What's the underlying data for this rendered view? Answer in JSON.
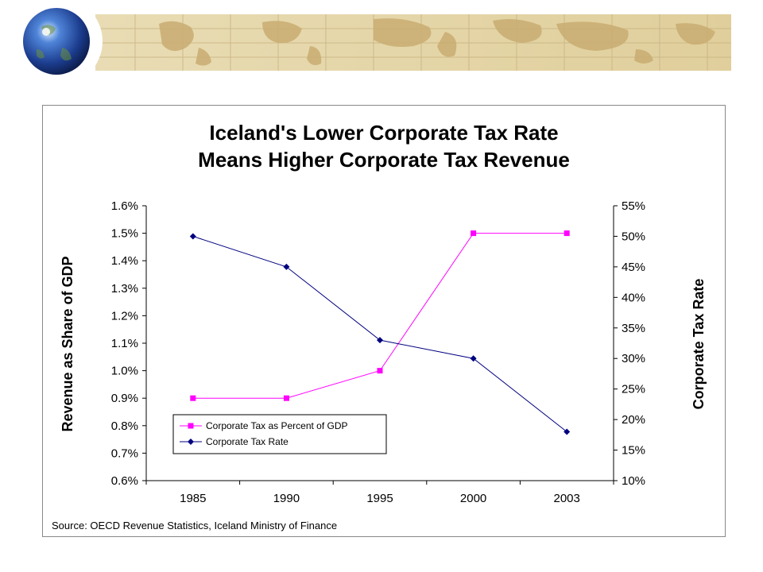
{
  "chart_data": {
    "type": "line",
    "title_lines": [
      "Iceland's Lower Corporate Tax Rate",
      "Means Higher Corporate Tax Revenue"
    ],
    "categories": [
      "1985",
      "1990",
      "1995",
      "2000",
      "2003"
    ],
    "y_left": {
      "label": "Revenue as Share of GDP",
      "range": [
        0.6,
        1.6
      ],
      "ticks": [
        "0.6%",
        "0.7%",
        "0.8%",
        "0.9%",
        "1.0%",
        "1.1%",
        "1.2%",
        "1.3%",
        "1.4%",
        "1.5%",
        "1.6%"
      ]
    },
    "y_right": {
      "label": "Corporate Tax Rate",
      "range": [
        10,
        55
      ],
      "ticks": [
        "10%",
        "15%",
        "20%",
        "25%",
        "30%",
        "35%",
        "40%",
        "45%",
        "50%",
        "55%"
      ]
    },
    "series": [
      {
        "name": "Corporate Tax as Percent of GDP",
        "axis": "left",
        "color": "#ff00ff",
        "marker": "square",
        "values": [
          0.9,
          0.9,
          1.0,
          1.5,
          1.5
        ]
      },
      {
        "name": "Corporate Tax Rate",
        "axis": "right",
        "color": "#000080",
        "marker": "diamond",
        "values": [
          50,
          45,
          33,
          30,
          18
        ]
      }
    ],
    "legend_position": "bottom-left inside plot",
    "grid": false,
    "source": "Source: OECD Revenue Statistics, Iceland Ministry of Finance"
  },
  "banner": {
    "globe_icon": "globe-icon",
    "colors": {
      "parchment": "#e3d3a4",
      "map": "#cdb27a"
    }
  }
}
